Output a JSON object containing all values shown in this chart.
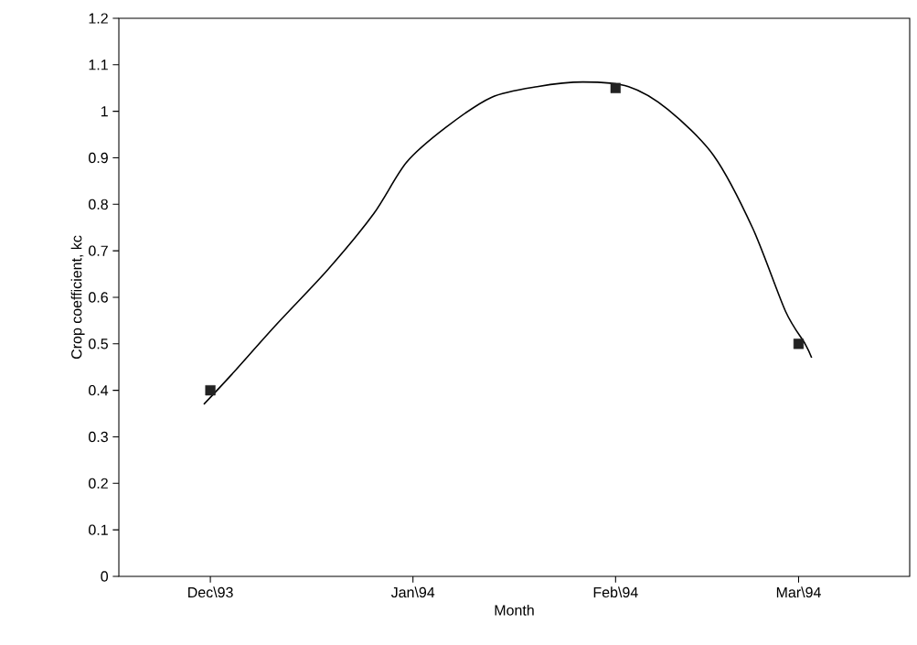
{
  "chart_data": {
    "type": "line",
    "xlabel": "Month",
    "ylabel": "Crop coefficient, kc",
    "series": [
      {
        "color": "#000000",
        "marker": "none",
        "x": [
          "1993-11-30",
          "1993-12-04",
          "1993-12-11",
          "1993-12-19",
          "1993-12-26",
          "1993-12-31",
          "1994-01-06",
          "1994-01-13",
          "1994-01-20",
          "1994-01-27",
          "1994-02-03",
          "1994-02-09",
          "1994-02-16",
          "1994-02-22",
          "1994-02-27",
          "1994-03-02",
          "1994-03-03"
        ],
        "values": [
          0.37,
          0.43,
          0.54,
          0.66,
          0.78,
          0.89,
          0.965,
          1.03,
          1.053,
          1.063,
          1.053,
          1.004,
          0.905,
          0.748,
          0.57,
          0.5,
          0.47
        ]
      },
      {
        "type": "scatter",
        "color": "#222222",
        "marker": "square",
        "x": [
          "1993-12-01",
          "1994-02-01",
          "1994-03-01"
        ],
        "values": [
          0.4,
          1.05,
          0.5
        ]
      }
    ],
    "xlim": [
      "1993-11-17",
      "1994-03-18"
    ],
    "xticks": [
      {
        "value": "1993-12-01",
        "label": "Dec\\93"
      },
      {
        "value": "1994-01-01",
        "label": "Jan\\94"
      },
      {
        "value": "1994-02-01",
        "label": "Feb\\94"
      },
      {
        "value": "1994-03-01",
        "label": "Mar\\94"
      }
    ],
    "ylim": [
      0,
      1.2
    ],
    "yticks": [
      0,
      0.1,
      0.2,
      0.3,
      0.4,
      0.5,
      0.6,
      0.7,
      0.8,
      0.9,
      1,
      1.1,
      1.2
    ],
    "grid": false
  }
}
